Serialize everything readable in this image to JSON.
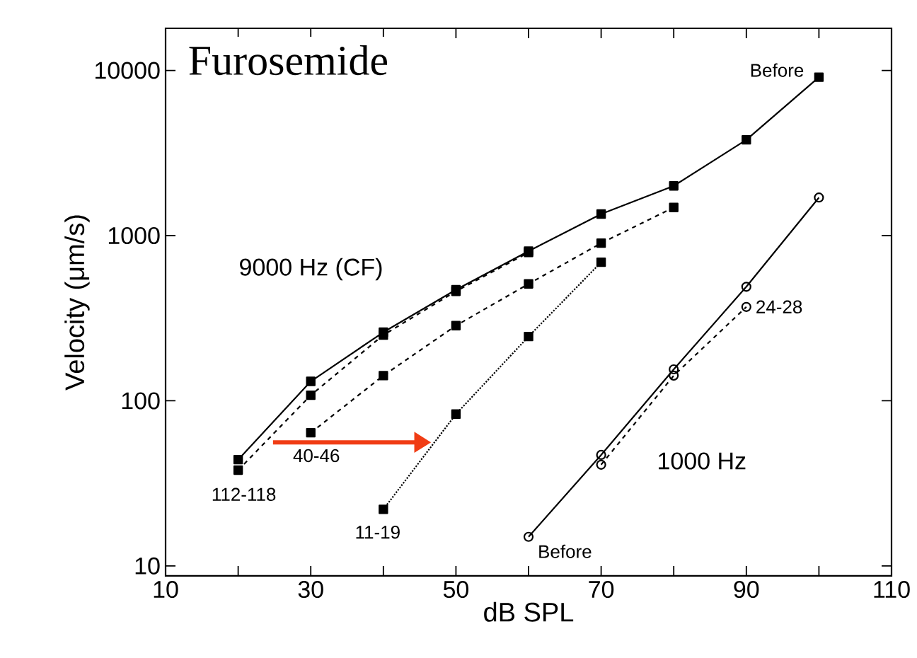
{
  "chart_data": {
    "type": "line",
    "title": "Furosemide",
    "xlabel": "dB SPL",
    "ylabel": "Velocity (μm/s)",
    "series": [
      {
        "name": "Before",
        "color": "#000000",
        "marker": "square",
        "line_style": "solid",
        "x": [
          20,
          30,
          40,
          50,
          60,
          70,
          80,
          90,
          100
        ],
        "values": [
          44,
          131,
          260,
          470,
          805,
          1350,
          2000,
          3800,
          9100
        ]
      },
      {
        "name": "112-118",
        "color": "#000000",
        "marker": "square",
        "line_style": "dashed",
        "x": [
          20,
          30,
          40,
          50,
          60
        ],
        "values": [
          38,
          108,
          250,
          460,
          790
        ]
      },
      {
        "name": "40-46",
        "color": "#000000",
        "marker": "square",
        "line_style": "dashed",
        "x": [
          30,
          40,
          50,
          60,
          70,
          80
        ],
        "values": [
          64,
          142,
          285,
          510,
          900,
          1480
        ]
      },
      {
        "name": "11-19",
        "color": "#000000",
        "marker": "square",
        "line_style": "dotted",
        "x": [
          40,
          50,
          60,
          70
        ],
        "values": [
          22,
          83,
          245,
          690
        ]
      },
      {
        "name": "Before",
        "color": "#000000",
        "marker": "circle",
        "line_style": "solid",
        "x": [
          60,
          70,
          80,
          90,
          100
        ],
        "values": [
          15,
          47,
          155,
          490,
          1700
        ]
      },
      {
        "name": "24-28",
        "color": "#000000",
        "marker": "circle",
        "line_style": "dashed",
        "x": [
          70,
          80,
          90
        ],
        "values": [
          41,
          142,
          370
        ]
      }
    ],
    "annotations": [
      "9000 Hz (CF)",
      "1000 Hz"
    ],
    "xlim": [
      10,
      110
    ],
    "xticks": [
      10,
      {
        "value": 20,
        "label": null
      },
      30,
      {
        "value": 40,
        "label": null
      },
      50,
      {
        "value": 60,
        "label": null
      },
      70,
      {
        "value": 80,
        "label": null
      },
      90,
      {
        "value": 100,
        "label": null
      },
      110
    ],
    "ylim": [
      8.7,
      18000
    ],
    "yticks": [
      10,
      100,
      1000,
      10000
    ],
    "log": "y"
  }
}
